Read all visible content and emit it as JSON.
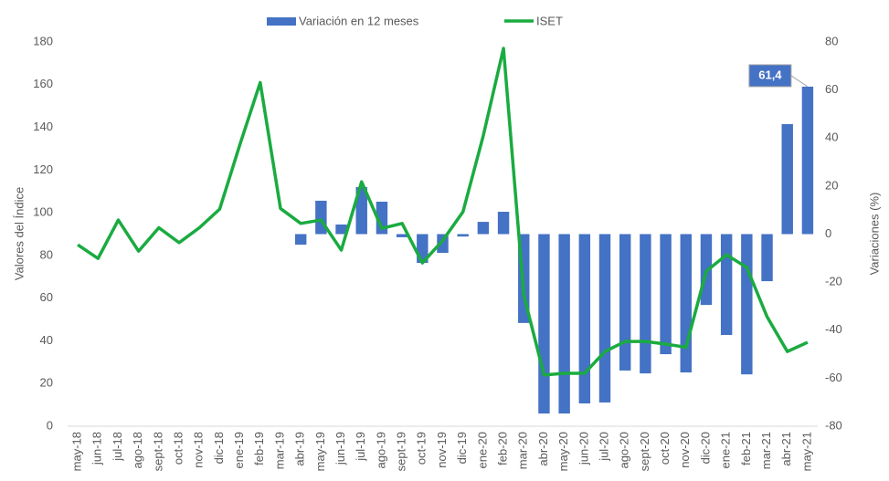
{
  "chart_data": {
    "type": "bar_line",
    "categories": [
      "may-18",
      "jun-18",
      "jul-18",
      "ago-18",
      "sept-18",
      "oct-18",
      "nov-18",
      "dic-18",
      "ene-19",
      "feb-19",
      "mar-19",
      "abr-19",
      "may-19",
      "jun-19",
      "jul-19",
      "ago-19",
      "sept-19",
      "oct-19",
      "nov-19",
      "dic-19",
      "ene-20",
      "feb-20",
      "mar-20",
      "abr-20",
      "may-20",
      "jun-20",
      "jul-20",
      "ago-20",
      "sept-20",
      "oct-20",
      "nov-20",
      "dic-20",
      "ene-21",
      "feb-21",
      "mar-21",
      "abr-21",
      "may-21"
    ],
    "series": [
      {
        "name": "Variación en 12 meses",
        "type": "bar",
        "axis": "y2",
        "color": "#4472c4",
        "values": [
          null,
          null,
          null,
          null,
          null,
          null,
          null,
          null,
          null,
          null,
          null,
          -4.4,
          13.9,
          4,
          19.6,
          13.5,
          -1.3,
          -12,
          -7.8,
          -1,
          5.1,
          9.3,
          -37,
          -74.7,
          -74.7,
          -70.5,
          -70.1,
          -56.8,
          -58,
          -50,
          -57.6,
          -29.5,
          -42,
          -58.4,
          -19.6,
          45.8,
          61.4
        ],
        "value_labels": [
          null,
          null,
          null,
          null,
          null,
          null,
          null,
          null,
          null,
          null,
          null,
          null,
          null,
          null,
          null,
          null,
          null,
          null,
          null,
          null,
          null,
          null,
          null,
          null,
          null,
          null,
          null,
          null,
          null,
          null,
          null,
          null,
          null,
          null,
          null,
          null,
          "61,4"
        ]
      },
      {
        "name": "ISET",
        "type": "line",
        "axis": "y",
        "color": "#1aab40",
        "values": [
          85,
          78.6,
          96.6,
          82,
          93,
          86,
          93,
          101.7,
          132,
          161,
          102,
          95,
          96.6,
          82.5,
          114.5,
          92.7,
          95,
          76.5,
          87,
          100.4,
          136,
          177,
          61.5,
          24,
          24.8,
          24.8,
          35,
          39.7,
          39.7,
          38.5,
          37,
          72.6,
          80.3,
          74.4,
          51.3,
          35,
          39.3
        ]
      }
    ],
    "y_label": "Valores del Índice",
    "y2_label": "Variaciones (%)",
    "ylim": [
      0,
      180
    ],
    "yticks": [
      0,
      20,
      40,
      60,
      80,
      100,
      120,
      140,
      160,
      180
    ],
    "y2lim": [
      -80,
      80
    ],
    "y2ticks": [
      -80,
      -60,
      -40,
      -20,
      0,
      20,
      40,
      60,
      80
    ],
    "legend": "top"
  }
}
